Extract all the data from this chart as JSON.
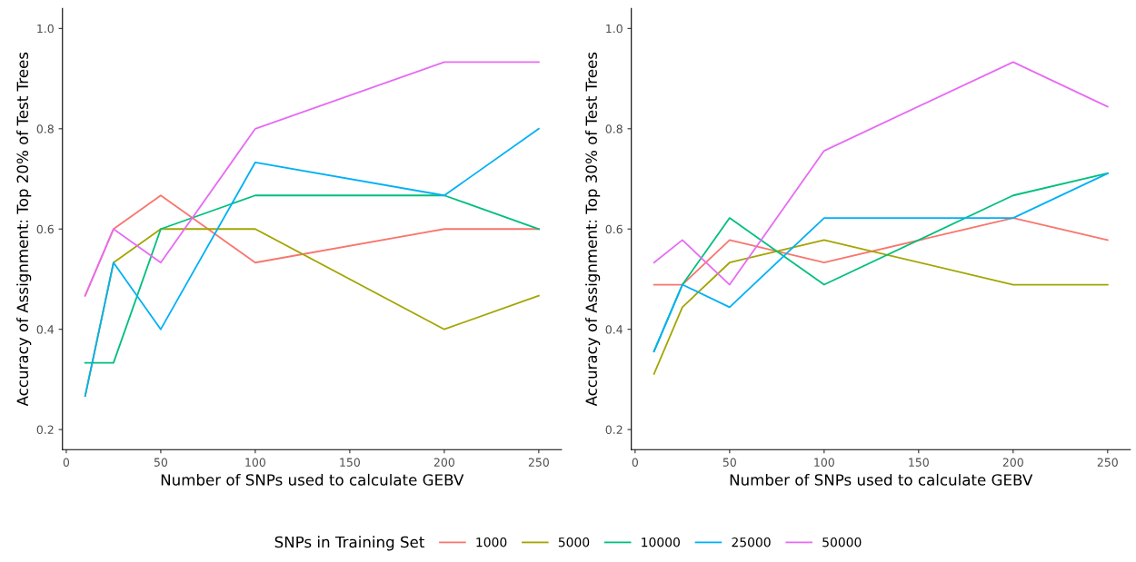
{
  "chart_data": [
    {
      "type": "line",
      "xlabel": "Number of SNPs used to calculate GEBV",
      "ylabel": "Accuracy of Assignment: Top 20% of Test Trees",
      "x": [
        10,
        25,
        50,
        100,
        200,
        250
      ],
      "xlim": [
        -2,
        262
      ],
      "xticks": [
        0,
        50,
        100,
        150,
        200,
        250
      ],
      "ylim": [
        0.16,
        1.04
      ],
      "yticks": [
        0.2,
        0.4,
        0.6,
        0.8,
        {
          "value": 1,
          "label": "1.0"
        }
      ],
      "grid": false,
      "legend": "bottom",
      "legend_title": "SNPs in Training Set",
      "series": [
        {
          "name": "1000",
          "color": "#F8766D",
          "values": [
            0.467,
            0.6,
            0.667,
            0.533,
            0.6,
            0.6
          ]
        },
        {
          "name": "5000",
          "color": "#A3A500",
          "values": [
            0.267,
            0.533,
            0.6,
            0.6,
            0.4,
            0.467
          ]
        },
        {
          "name": "10000",
          "color": "#00BF7D",
          "values": [
            0.333,
            0.333,
            0.6,
            0.667,
            0.667,
            0.6
          ]
        },
        {
          "name": "25000",
          "color": "#00B0F6",
          "values": [
            0.267,
            0.533,
            0.4,
            0.733,
            0.667,
            0.8
          ]
        },
        {
          "name": "50000",
          "color": "#E76BF3",
          "values": [
            0.467,
            0.6,
            0.533,
            0.8,
            0.933,
            0.933
          ]
        }
      ]
    },
    {
      "type": "line",
      "xlabel": "Number of SNPs used to calculate GEBV",
      "ylabel": "Accuracy of Assignment: Top 30% of Test Trees",
      "x": [
        10,
        25,
        50,
        100,
        200,
        250
      ],
      "xlim": [
        -2,
        262
      ],
      "xticks": [
        0,
        50,
        100,
        150,
        200,
        250
      ],
      "ylim": [
        0.16,
        1.04
      ],
      "yticks": [
        0.2,
        0.4,
        0.6,
        0.8,
        {
          "value": 1,
          "label": "1.0"
        }
      ],
      "grid": false,
      "series": [
        {
          "name": "1000",
          "color": "#F8766D",
          "values": [
            0.489,
            0.489,
            0.578,
            0.533,
            0.622,
            0.578
          ]
        },
        {
          "name": "5000",
          "color": "#A3A500",
          "values": [
            0.311,
            0.444,
            0.533,
            0.578,
            0.489,
            0.489
          ]
        },
        {
          "name": "10000",
          "color": "#00BF7D",
          "values": [
            0.356,
            0.489,
            0.622,
            0.489,
            0.667,
            0.711
          ]
        },
        {
          "name": "25000",
          "color": "#00B0F6",
          "values": [
            0.356,
            0.489,
            0.444,
            0.622,
            0.622,
            0.711
          ]
        },
        {
          "name": "50000",
          "color": "#E76BF3",
          "values": [
            0.533,
            0.578,
            0.489,
            0.756,
            0.933,
            0.844
          ]
        }
      ]
    }
  ]
}
